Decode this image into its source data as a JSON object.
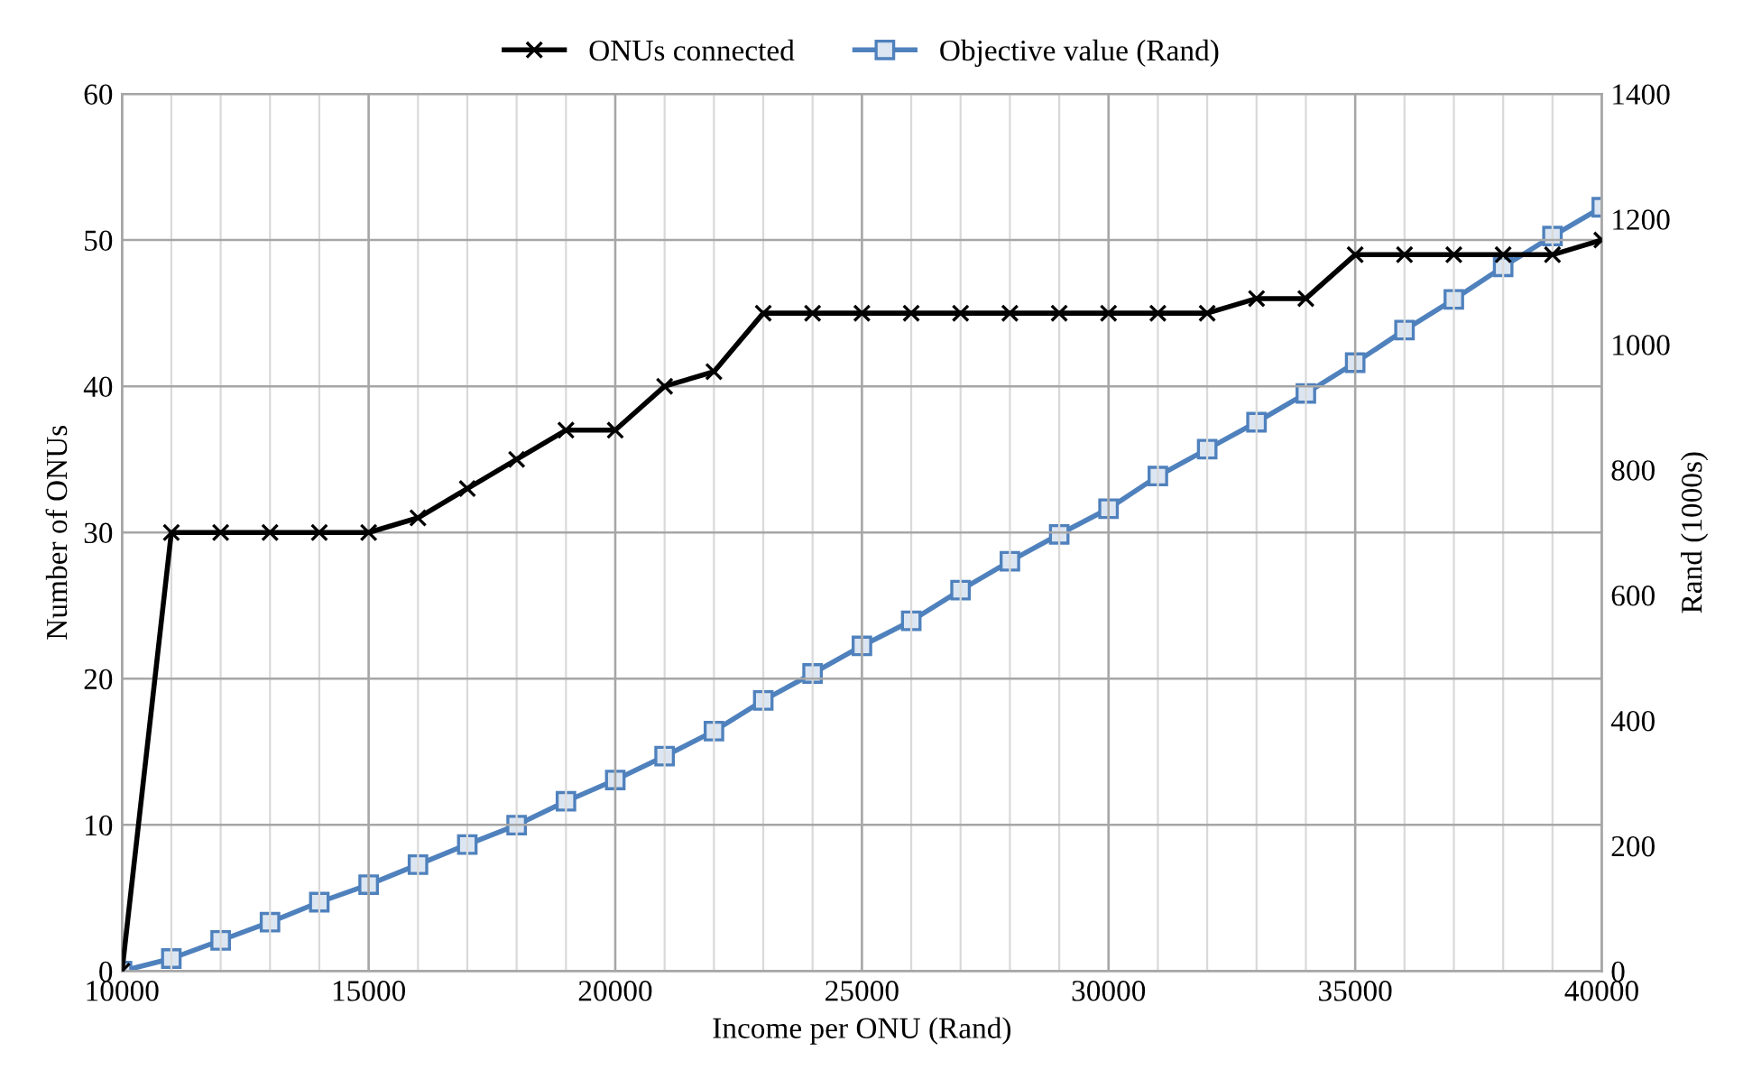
{
  "chart_data": {
    "type": "line",
    "xlabel": "Income per ONU (Rand)",
    "ylabel": "Number of ONUs",
    "y2label": "Rand (1000s)",
    "x": [
      10000,
      11000,
      12000,
      13000,
      14000,
      15000,
      16000,
      17000,
      18000,
      19000,
      20000,
      21000,
      22000,
      23000,
      24000,
      25000,
      26000,
      27000,
      28000,
      29000,
      30000,
      31000,
      32000,
      33000,
      34000,
      35000,
      36000,
      37000,
      38000,
      39000,
      40000
    ],
    "series": [
      {
        "name": "ONUs connected",
        "color": "#000000",
        "marker": "cross",
        "values": [
          0,
          30,
          30,
          30,
          30,
          30,
          31,
          33,
          35,
          37,
          37,
          40,
          41,
          45,
          45,
          45,
          45,
          45,
          45,
          45,
          45,
          45,
          45,
          46,
          46,
          49,
          49,
          49,
          49,
          49,
          50
        ]
      },
      {
        "name": "Objective value (Rand)",
        "color": "#4f81bd",
        "marker": "square",
        "axis": "y2",
        "values": [
          0,
          20,
          49,
          78,
          110,
          138,
          170,
          202,
          233,
          271,
          305,
          343,
          383,
          432,
          475,
          519,
          559,
          608,
          654,
          697,
          738,
          790,
          833,
          876,
          922,
          971,
          1023,
          1072,
          1124,
          1173,
          1219
        ]
      }
    ],
    "xlim": [
      10000,
      40000
    ],
    "xticks": [
      10000,
      15000,
      20000,
      25000,
      30000,
      35000,
      40000
    ],
    "ylim": [
      0,
      60
    ],
    "yticks": [
      0,
      10,
      20,
      30,
      40,
      50,
      60
    ],
    "y2lim": [
      0,
      1400
    ],
    "y2ticks": [
      0,
      200,
      400,
      600,
      800,
      1000,
      1200,
      1400
    ],
    "grid": true,
    "legend": "top",
    "line_style": "solid"
  }
}
